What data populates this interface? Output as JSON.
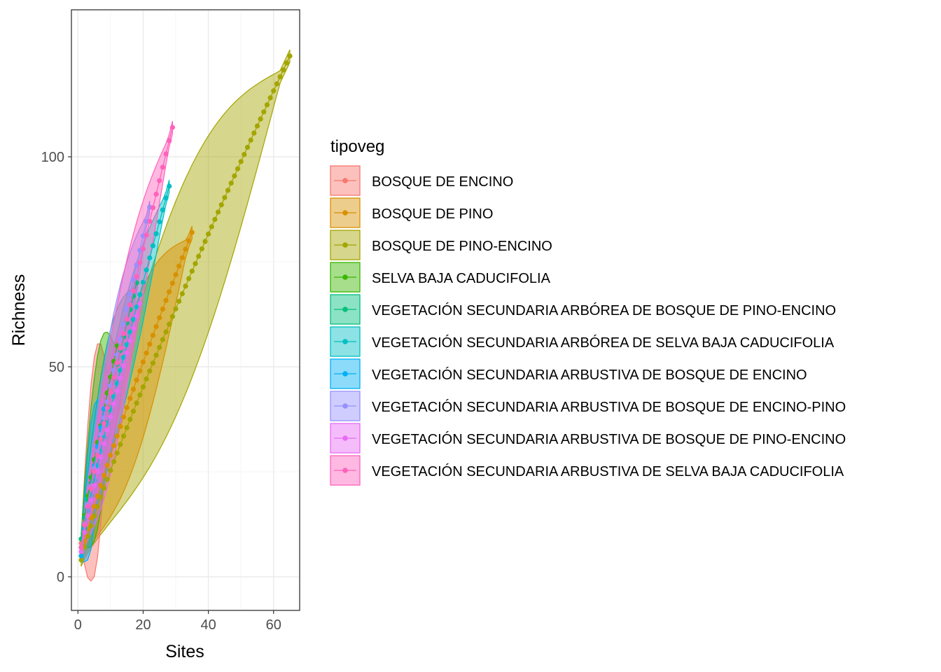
{
  "chart_data": {
    "type": "line",
    "title": "",
    "xlabel": "Sites",
    "ylabel": "Richness",
    "xlim": [
      -2,
      68
    ],
    "ylim": [
      -8,
      135
    ],
    "x_ticks": [
      0,
      20,
      40,
      60
    ],
    "y_ticks": [
      0,
      50,
      100
    ],
    "grid": true,
    "legend_title": "tipoveg",
    "legend_position": "right",
    "series": [
      {
        "name": "BOSQUE DE ENCINO",
        "color": "#F8766D",
        "n_sites": 10,
        "richness_start": 8,
        "richness_end": 45,
        "ribbon_low": 20,
        "ribbon_high": 65
      },
      {
        "name": "BOSQUE DE PINO",
        "color": "#D89000",
        "n_sites": 35,
        "richness_start": 5,
        "richness_end": 82,
        "ribbon_low": 55,
        "ribbon_high": 86
      },
      {
        "name": "BOSQUE DE PINO-ENCINO",
        "color": "#A3A500",
        "n_sites": 65,
        "richness_start": 4,
        "richness_end": 124,
        "ribbon_low": 85,
        "ribbon_high": 129
      },
      {
        "name": "SELVA BAJA CADUCIFOLIA",
        "color": "#39B600",
        "n_sites": 12,
        "richness_start": 9,
        "richness_end": 55,
        "ribbon_low": 35,
        "ribbon_high": 70
      },
      {
        "name": "VEGETACIÓN SECUNDARIA ARBÓREA DE BOSQUE DE PINO-ENCINO",
        "color": "#00BF7D",
        "n_sites": 18,
        "richness_start": 9,
        "richness_end": 70,
        "ribbon_low": 55,
        "ribbon_high": 80
      },
      {
        "name": "VEGETACIÓN SECUNDARIA ARBÓREA DE SELVA BAJA CADUCIFOLIA",
        "color": "#00BFC4",
        "n_sites": 28,
        "richness_start": 7,
        "richness_end": 93,
        "ribbon_low": 75,
        "ribbon_high": 94
      },
      {
        "name": "VEGETACIÓN SECUNDARIA ARBUSTIVA DE BOSQUE DE ENCINO",
        "color": "#00B0F6",
        "n_sites": 8,
        "richness_start": 5,
        "richness_end": 40,
        "ribbon_low": 25,
        "ribbon_high": 50
      },
      {
        "name": "VEGETACIÓN SECUNDARIA ARBUSTIVA DE BOSQUE DE ENCINO-PINO",
        "color": "#9590FF",
        "n_sites": 22,
        "richness_start": 7,
        "richness_end": 88,
        "ribbon_low": 70,
        "ribbon_high": 92
      },
      {
        "name": "VEGETACIÓN SECUNDARIA ARBUSTIVA DE BOSQUE DE PINO-ENCINO",
        "color": "#E76BF3",
        "n_sites": 19,
        "richness_start": 6,
        "richness_end": 65,
        "ribbon_low": 50,
        "ribbon_high": 72
      },
      {
        "name": "VEGETACIÓN SECUNDARIA ARBUSTIVA DE SELVA BAJA CADUCIFOLIA",
        "color": "#FF62BC",
        "n_sites": 29,
        "richness_start": 7,
        "richness_end": 107,
        "ribbon_low": 85,
        "ribbon_high": 108
      }
    ]
  }
}
